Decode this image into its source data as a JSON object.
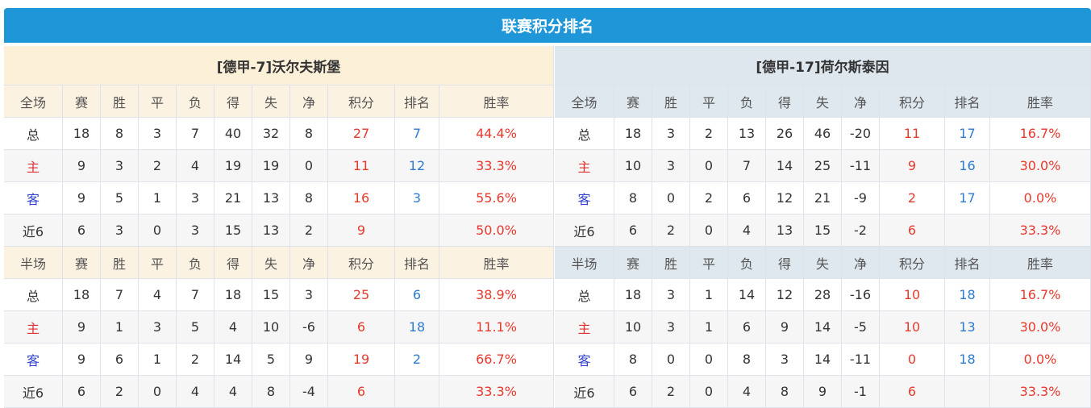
{
  "title": "联赛积分排名",
  "teams": [
    {
      "name": "[德甲-7]沃尔夫斯堡",
      "full": {
        "headers": [
          "全场",
          "赛",
          "胜",
          "平",
          "负",
          "得",
          "失",
          "净",
          "积分",
          "排名",
          "胜率"
        ],
        "rows": [
          [
            "总",
            "18",
            "8",
            "3",
            "7",
            "40",
            "32",
            "8",
            "27",
            "7",
            "44.4%"
          ],
          [
            "主",
            "9",
            "3",
            "2",
            "4",
            "19",
            "19",
            "0",
            "11",
            "12",
            "33.3%"
          ],
          [
            "客",
            "9",
            "5",
            "1",
            "3",
            "21",
            "13",
            "8",
            "16",
            "3",
            "55.6%"
          ],
          [
            "近6",
            "6",
            "3",
            "0",
            "3",
            "15",
            "13",
            "2",
            "9",
            null,
            "50.0%"
          ]
        ]
      },
      "half": {
        "headers": [
          "半场",
          "赛",
          "胜",
          "平",
          "负",
          "得",
          "失",
          "净",
          "积分",
          "排名",
          "胜率"
        ],
        "rows": [
          [
            "总",
            "18",
            "7",
            "4",
            "7",
            "18",
            "15",
            "3",
            "25",
            "6",
            "38.9%"
          ],
          [
            "主",
            "9",
            "1",
            "3",
            "5",
            "4",
            "10",
            "-6",
            "6",
            "18",
            "11.1%"
          ],
          [
            "客",
            "9",
            "6",
            "1",
            "2",
            "14",
            "5",
            "9",
            "19",
            "2",
            "66.7%"
          ],
          [
            "近6",
            "6",
            "2",
            "0",
            "4",
            "4",
            "8",
            "-4",
            "6",
            null,
            "33.3%"
          ]
        ]
      }
    },
    {
      "name": "[德甲-17]荷尔斯泰因",
      "full": {
        "headers": [
          "全场",
          "赛",
          "胜",
          "平",
          "负",
          "得",
          "失",
          "净",
          "积分",
          "排名",
          "胜率"
        ],
        "rows": [
          [
            "总",
            "18",
            "3",
            "2",
            "13",
            "26",
            "46",
            "-20",
            "11",
            "17",
            "16.7%"
          ],
          [
            "主",
            "10",
            "3",
            "0",
            "7",
            "14",
            "25",
            "-11",
            "9",
            "16",
            "30.0%"
          ],
          [
            "客",
            "8",
            "0",
            "2",
            "6",
            "12",
            "21",
            "-9",
            "2",
            "17",
            "0.0%"
          ],
          [
            "近6",
            "6",
            "2",
            "0",
            "4",
            "13",
            "15",
            "-2",
            "6",
            null,
            "33.3%"
          ]
        ]
      },
      "half": {
        "headers": [
          "半场",
          "赛",
          "胜",
          "平",
          "负",
          "得",
          "失",
          "净",
          "积分",
          "排名",
          "胜率"
        ],
        "rows": [
          [
            "总",
            "18",
            "3",
            "1",
            "14",
            "12",
            "28",
            "-16",
            "10",
            "18",
            "16.7%"
          ],
          [
            "主",
            "10",
            "3",
            "1",
            "6",
            "9",
            "14",
            "-5",
            "10",
            "13",
            "30.0%"
          ],
          [
            "客",
            "8",
            "0",
            "0",
            "8",
            "3",
            "14",
            "-11",
            "0",
            "18",
            "0.0%"
          ],
          [
            "近6",
            "6",
            "2",
            "0",
            "4",
            "8",
            "9",
            "-1",
            "6",
            null,
            "33.3%"
          ]
        ]
      }
    }
  ]
}
